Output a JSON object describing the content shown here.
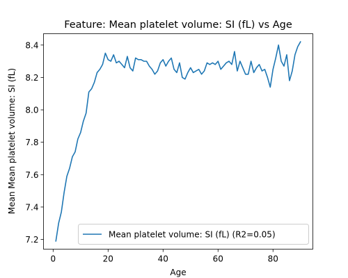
{
  "chart_data": {
    "type": "line",
    "title": "Feature: Mean platelet volume:  SI (fL) vs Age",
    "xlabel": "Age",
    "ylabel": "Mean Mean platelet volume:  SI (fL)",
    "xlim": [
      -3.5,
      94.5
    ],
    "ylim": [
      7.14,
      8.47
    ],
    "xticks": [
      0,
      20,
      40,
      60,
      80
    ],
    "yticks": [
      7.2,
      7.4,
      7.6,
      7.8,
      8.0,
      8.2,
      8.4
    ],
    "ytick_labels": [
      "7.2",
      "7.4",
      "7.6",
      "7.8",
      "8.0",
      "8.2",
      "8.4"
    ],
    "grid": false,
    "legend_position": "lower right",
    "series": [
      {
        "name": "Mean platelet volume:  SI (fL) (R2=0.05)",
        "color": "#1f77b4",
        "x": [
          1,
          2,
          3,
          4,
          5,
          6,
          7,
          8,
          9,
          10,
          11,
          12,
          13,
          14,
          15,
          16,
          17,
          18,
          19,
          20,
          21,
          22,
          23,
          24,
          25,
          26,
          27,
          28,
          29,
          30,
          31,
          32,
          33,
          34,
          35,
          36,
          37,
          38,
          39,
          40,
          41,
          42,
          43,
          44,
          45,
          46,
          47,
          48,
          49,
          50,
          51,
          52,
          53,
          54,
          55,
          56,
          57,
          58,
          59,
          60,
          61,
          62,
          63,
          64,
          65,
          66,
          67,
          68,
          69,
          70,
          71,
          72,
          73,
          74,
          75,
          76,
          77,
          78,
          79,
          80,
          81,
          82,
          83,
          84,
          85,
          86,
          87,
          88,
          89,
          90
        ],
        "y": [
          7.19,
          7.3,
          7.37,
          7.49,
          7.59,
          7.64,
          7.71,
          7.74,
          7.82,
          7.86,
          7.93,
          7.98,
          8.11,
          8.13,
          8.17,
          8.23,
          8.25,
          8.28,
          8.35,
          8.31,
          8.3,
          8.34,
          8.29,
          8.3,
          8.28,
          8.26,
          8.33,
          8.26,
          8.24,
          8.32,
          8.31,
          8.31,
          8.3,
          8.3,
          8.27,
          8.25,
          8.22,
          8.24,
          8.29,
          8.31,
          8.27,
          8.3,
          8.32,
          8.25,
          8.23,
          8.29,
          8.2,
          8.19,
          8.23,
          8.26,
          8.23,
          8.24,
          8.25,
          8.22,
          8.24,
          8.29,
          8.28,
          8.29,
          8.28,
          8.3,
          8.25,
          8.27,
          8.29,
          8.3,
          8.28,
          8.36,
          8.24,
          8.3,
          8.26,
          8.22,
          8.22,
          8.3,
          8.23,
          8.26,
          8.28,
          8.24,
          8.25,
          8.2,
          8.14,
          8.25,
          8.32,
          8.4,
          8.3,
          8.27,
          8.34,
          8.18,
          8.24,
          8.34,
          8.39,
          8.42
        ]
      }
    ]
  }
}
